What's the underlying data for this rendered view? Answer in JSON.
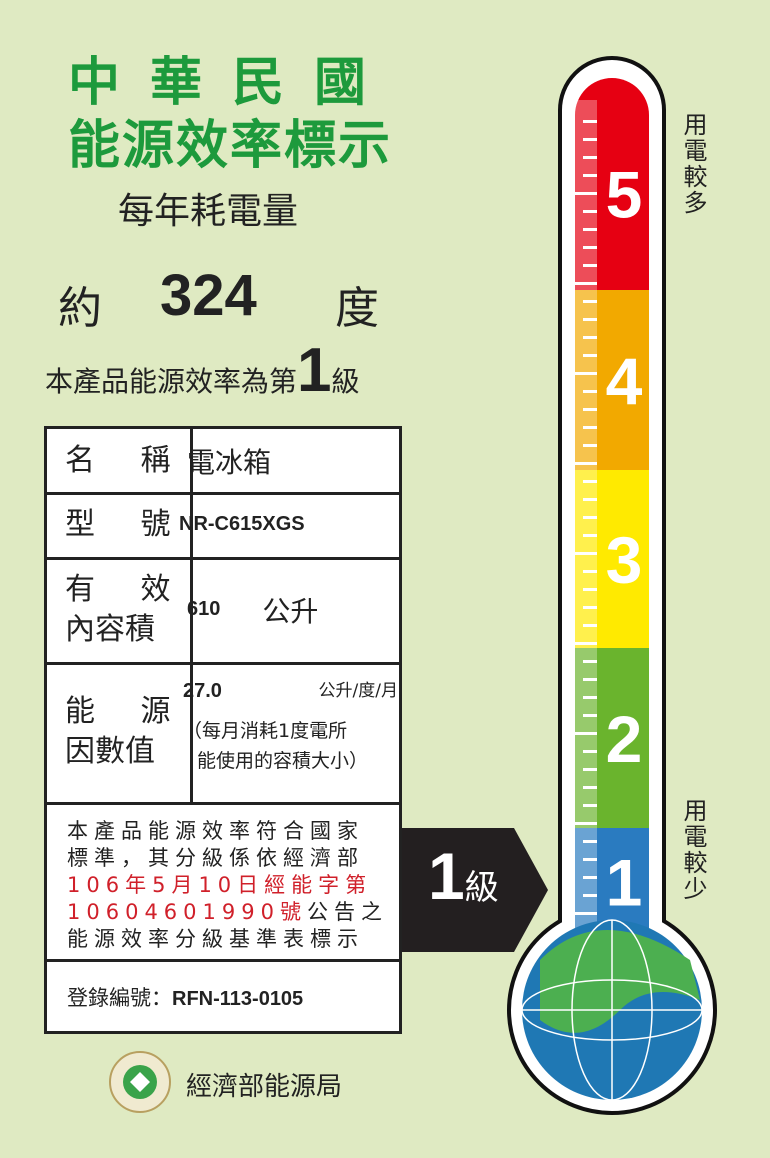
{
  "title_line1": "中華民國",
  "title_line2": "能源效率標示",
  "annual_label": "每年耗電量",
  "consumption": {
    "prefix": "約",
    "value": "324",
    "unit": "度"
  },
  "grade_statement": {
    "text": "本產品能源效率為第",
    "grade": "1",
    "suffix": "級"
  },
  "table": {
    "name": {
      "label": "名 稱",
      "value": "電冰箱"
    },
    "model": {
      "label": "型 號",
      "value": "NR-C615XGS"
    },
    "volume": {
      "label1": "有 效",
      "label2": "內容積",
      "value": "610",
      "unit": "公升"
    },
    "factor": {
      "label1": "能 源",
      "label2": "因數值",
      "value": "27.0",
      "unit": "公升/度/月",
      "note1": "（每月消耗1度電所",
      "note2": "能使用的容積大小）"
    },
    "notice": {
      "line1": "本產品能源效率符合國家",
      "line2": "標準，其分級係依經濟部",
      "line3_red": "106年5月10日經能字第",
      "line4_red": "10604601990號",
      "line4_rest": "公告之",
      "line5": "能源效率分級基準表標示"
    },
    "registration": {
      "label": "登錄編號：",
      "value": "RFN-113-0105"
    }
  },
  "arrow": {
    "grade": "1",
    "suffix": "級"
  },
  "scale": {
    "levels": [
      {
        "n": "5",
        "color": "#e60012"
      },
      {
        "n": "4",
        "color": "#f2a900"
      },
      {
        "n": "3",
        "color": "#ffea00"
      },
      {
        "n": "2",
        "color": "#6ab42d"
      },
      {
        "n": "1",
        "color": "#2a7bc0"
      }
    ],
    "top_label": "用電較多",
    "bottom_label": "用電較少",
    "current_level": 1
  },
  "agency": "經濟部能源局",
  "colors": {
    "title_green": "#1d9a3c",
    "background": "#dfeac2",
    "notice_red": "#d0202a"
  }
}
